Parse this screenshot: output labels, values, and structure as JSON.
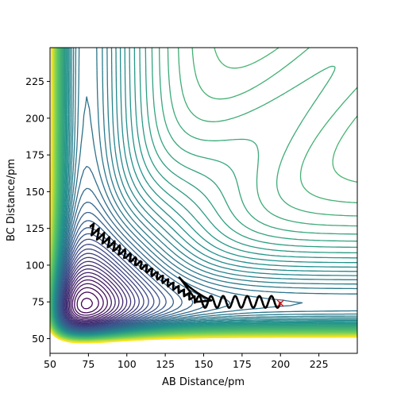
{
  "chart_data": {
    "type": "contour",
    "xlabel": "AB Distance/pm",
    "ylabel": "BC Distance/pm",
    "xlim": [
      50,
      250
    ],
    "ylim": [
      40,
      248
    ],
    "xticks": [
      50,
      75,
      100,
      125,
      150,
      175,
      200,
      225
    ],
    "yticks": [
      50,
      75,
      100,
      125,
      150,
      175,
      200,
      225
    ],
    "colormap": [
      "#440154",
      "#3b528b",
      "#21918c",
      "#5ec962",
      "#fde725"
    ],
    "contour_levels": 60,
    "trajectory": {
      "color": "#000000",
      "start": [
        76,
        126
      ],
      "end_marker": {
        "x": 200,
        "y": 74,
        "symbol": "x",
        "color": "#ff0000"
      }
    }
  }
}
